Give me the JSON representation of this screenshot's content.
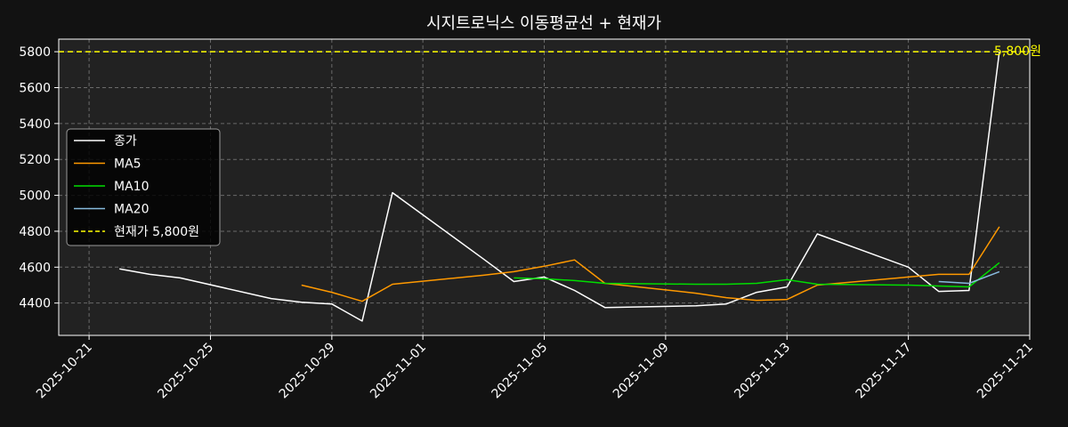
{
  "chart_data": {
    "type": "line",
    "title": "시지트로닉스 이동평균선 + 현재가",
    "xlabel": "",
    "ylabel": "",
    "x_axis_type": "date",
    "xlim": [
      "2025-10-20",
      "2025-11-21"
    ],
    "ylim": [
      4220,
      5870
    ],
    "x_ticks": [
      "2025-10-21",
      "2025-10-25",
      "2025-10-29",
      "2025-11-01",
      "2025-11-05",
      "2025-11-09",
      "2025-11-13",
      "2025-11-17",
      "2025-11-21"
    ],
    "y_ticks": [
      4400,
      4600,
      4800,
      5000,
      5200,
      5400,
      5600,
      5800
    ],
    "grid": true,
    "legend_position": "center-left",
    "background": "#222222",
    "series": [
      {
        "name": "종가",
        "color": "#ffffff",
        "points": [
          [
            "2025-10-22",
            4590
          ],
          [
            "2025-10-23",
            4560
          ],
          [
            "2025-10-24",
            4540
          ],
          [
            "2025-10-27",
            4425
          ],
          [
            "2025-10-28",
            4405
          ],
          [
            "2025-10-29",
            4395
          ],
          [
            "2025-10-30",
            4300
          ],
          [
            "2025-10-31",
            5015
          ],
          [
            "2025-11-03",
            4645
          ],
          [
            "2025-11-04",
            4520
          ],
          [
            "2025-11-05",
            4545
          ],
          [
            "2025-11-06",
            4470
          ],
          [
            "2025-11-07",
            4375
          ],
          [
            "2025-11-10",
            4385
          ],
          [
            "2025-11-11",
            4395
          ],
          [
            "2025-11-12",
            4460
          ],
          [
            "2025-11-13",
            4490
          ],
          [
            "2025-11-14",
            4785
          ],
          [
            "2025-11-17",
            4600
          ],
          [
            "2025-11-18",
            4465
          ],
          [
            "2025-11-19",
            4470
          ],
          [
            "2025-11-20",
            5800
          ]
        ]
      },
      {
        "name": "MA5",
        "color": "#ff9900",
        "points": [
          [
            "2025-10-28",
            4500
          ],
          [
            "2025-10-29",
            4460
          ],
          [
            "2025-10-30",
            4410
          ],
          [
            "2025-10-31",
            4505
          ],
          [
            "2025-11-03",
            4555
          ],
          [
            "2025-11-04",
            4575
          ],
          [
            "2025-11-05",
            4605
          ],
          [
            "2025-11-06",
            4640
          ],
          [
            "2025-11-07",
            4510
          ],
          [
            "2025-11-10",
            4455
          ],
          [
            "2025-11-11",
            4430
          ],
          [
            "2025-11-12",
            4415
          ],
          [
            "2025-11-13",
            4420
          ],
          [
            "2025-11-14",
            4500
          ],
          [
            "2025-11-17",
            4545
          ],
          [
            "2025-11-18",
            4560
          ],
          [
            "2025-11-19",
            4560
          ],
          [
            "2025-11-20",
            4825
          ]
        ]
      },
      {
        "name": "MA10",
        "color": "#00dd00",
        "points": [
          [
            "2025-11-04",
            4540
          ],
          [
            "2025-11-05",
            4535
          ],
          [
            "2025-11-06",
            4525
          ],
          [
            "2025-11-07",
            4510
          ],
          [
            "2025-11-10",
            4505
          ],
          [
            "2025-11-11",
            4505
          ],
          [
            "2025-11-12",
            4510
          ],
          [
            "2025-11-13",
            4530
          ],
          [
            "2025-11-14",
            4505
          ],
          [
            "2025-11-17",
            4500
          ],
          [
            "2025-11-18",
            4495
          ],
          [
            "2025-11-19",
            4490
          ],
          [
            "2025-11-20",
            4625
          ]
        ]
      },
      {
        "name": "MA20",
        "color": "#88bbdd",
        "points": [
          [
            "2025-11-18",
            4520
          ],
          [
            "2025-11-19",
            4510
          ],
          [
            "2025-11-20",
            4575
          ]
        ]
      }
    ],
    "reference_line": {
      "legend": "현재가 5,800원",
      "label": "5,800원",
      "value": 5800,
      "color": "#ffff00"
    }
  }
}
